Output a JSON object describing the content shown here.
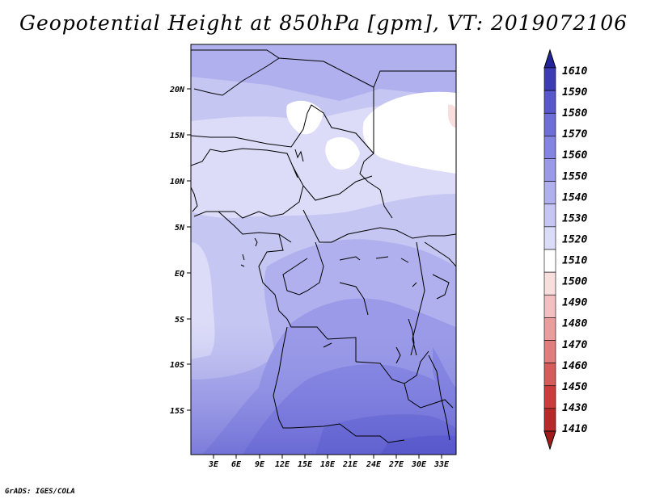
{
  "title": "Geopotential Height at 850hPa [gpm], VT: 2019072106",
  "credit": "GrADS: IGES/COLA",
  "map": {
    "lat_ticks": [
      "20N",
      "15N",
      "10N",
      "5N",
      "EQ",
      "5S",
      "10S",
      "15S"
    ],
    "lon_ticks": [
      "3E",
      "6E",
      "9E",
      "12E",
      "15E",
      "18E",
      "21E",
      "24E",
      "27E",
      "30E",
      "33E"
    ]
  },
  "colorbar": {
    "levels": [
      "1410",
      "1430",
      "1450",
      "1460",
      "1470",
      "1480",
      "1490",
      "1500",
      "1510",
      "1520",
      "1530",
      "1540",
      "1550",
      "1560",
      "1570",
      "1580",
      "1590",
      "1610"
    ],
    "colors": [
      "#a01c1c",
      "#b82a2a",
      "#cc3c3c",
      "#d65c5c",
      "#e07e7e",
      "#e99e9e",
      "#f2c0c0",
      "#f9dede",
      "#ffffff",
      "#dcdcf8",
      "#c6c6f2",
      "#b0b0ee",
      "#9a9ae8",
      "#8484e2",
      "#6e6ed8",
      "#5858cc",
      "#3c3cb4",
      "#24249a"
    ]
  }
}
